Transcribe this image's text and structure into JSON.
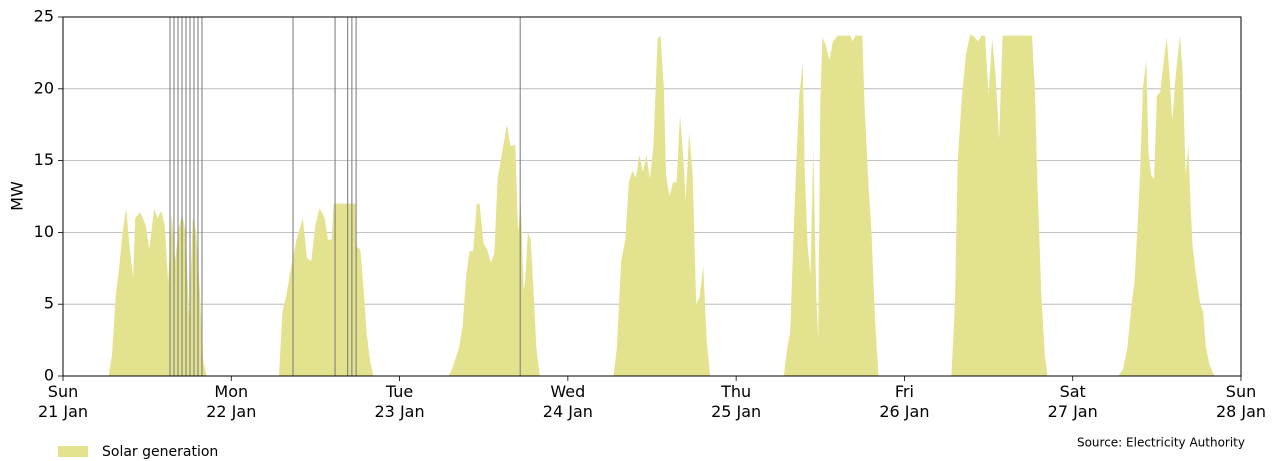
{
  "chart_data": {
    "type": "area",
    "y_label": "MW",
    "source": "Source: Electricity Authority",
    "x": [
      0,
      6.5,
      7,
      7.5,
      8,
      8.5,
      9,
      9.5,
      10,
      10.3,
      11,
      11.8,
      12.3,
      13,
      13.5,
      14,
      14.5,
      15,
      15.5,
      16,
      16.5,
      17,
      17.5,
      18,
      18.5,
      19,
      19.5,
      20,
      20.5,
      30.8,
      31.3,
      31.8,
      32.5,
      33.3,
      34.2,
      34.8,
      35.4,
      36,
      36.6,
      37.3,
      37.8,
      38.3,
      38.6,
      41.7,
      41.9,
      42.4,
      42.8,
      43.3,
      43.8,
      44.3,
      55,
      55.5,
      56.5,
      57,
      57.5,
      58,
      58.5,
      59,
      59.4,
      60,
      60.5,
      61,
      61.5,
      62,
      62.6,
      63.3,
      63.8,
      64.5,
      64.9,
      65.3,
      65.7,
      65.9,
      66.3,
      66.7,
      67.1,
      67.5,
      68,
      78.5,
      79,
      79.6,
      80.2,
      80.7,
      81.2,
      81.7,
      82.2,
      82.7,
      83.2,
      83.7,
      84.2,
      84.8,
      85.2,
      85.7,
      86,
      86.5,
      87,
      87.5,
      88,
      88.5,
      88.8,
      89.3,
      89.8,
      90.3,
      90.8,
      91.3,
      91.8,
      92.3,
      102.8,
      103.3,
      103.7,
      104.2,
      104.6,
      105,
      105.5,
      105.8,
      106.2,
      106.6,
      107,
      107.4,
      107.7,
      108,
      108.3,
      108.8,
      109.3,
      109.8,
      110.5,
      112.3,
      112.6,
      113,
      114,
      114.3,
      114.8,
      115.3,
      115.8,
      116.3,
      126.7,
      127.2,
      127.6,
      128.2,
      128.8,
      129.4,
      130,
      130.5,
      131,
      131.5,
      132,
      132.5,
      133,
      133.5,
      134,
      138.2,
      138.6,
      139,
      139.5,
      140,
      140.4,
      150.5,
      151.2,
      151.8,
      152.4,
      152.8,
      153.2,
      153.6,
      154,
      154.5,
      154.8,
      155.2,
      155.6,
      156,
      156.5,
      157,
      157.4,
      157.8,
      158.2,
      158.7,
      159.3,
      159.7,
      160.1,
      160.5,
      160.8,
      161.1,
      161.6,
      162.2,
      162.6,
      163,
      163.5,
      164.2,
      168
    ],
    "series": [
      {
        "name": "Solar generation",
        "color": "#e3e38f",
        "values": [
          0,
          0,
          1.5,
          5.5,
          7.5,
          10,
          11.7,
          9,
          6.8,
          11,
          11.4,
          10.5,
          8.8,
          11.6,
          11,
          11.5,
          10.5,
          6.5,
          11.3,
          8,
          10.3,
          11.2,
          10,
          4,
          11,
          10,
          6,
          1,
          0,
          0,
          4.5,
          5.5,
          7.5,
          9.5,
          11,
          8.2,
          8,
          10.5,
          11.7,
          11,
          9.5,
          9.5,
          12,
          12,
          9,
          8.8,
          6.5,
          3,
          1,
          0,
          0,
          0.5,
          2,
          3.5,
          7,
          8.7,
          8.7,
          12,
          12,
          9.2,
          8.8,
          7.9,
          8.5,
          13.8,
          15.5,
          17.5,
          16,
          16.1,
          10,
          12,
          6,
          6.5,
          10,
          9.5,
          6,
          2,
          0,
          0,
          2,
          8,
          9.5,
          13.5,
          14.3,
          13.8,
          15.4,
          14.2,
          15.4,
          13.7,
          16,
          23.5,
          23.7,
          20,
          14,
          12.5,
          13.5,
          13.5,
          18.2,
          15,
          12.2,
          17,
          14,
          5,
          5.5,
          7.7,
          2.5,
          0,
          0,
          2,
          3,
          10,
          15,
          19.5,
          21.8,
          14,
          9,
          7,
          16,
          6,
          2.5,
          19,
          23.6,
          23,
          22,
          23.3,
          23.7,
          23.7,
          23.3,
          23.7,
          23.7,
          19,
          14,
          10,
          4,
          0,
          0,
          5,
          15,
          19.5,
          22.5,
          23.8,
          23.6,
          23.3,
          23.7,
          23.7,
          19.5,
          23.5,
          21,
          16.5,
          23.7,
          23.7,
          20,
          13,
          6,
          1.5,
          0,
          0,
          0.5,
          2,
          5,
          6.5,
          10,
          14,
          20,
          22,
          15.5,
          14,
          13.7,
          19.5,
          19.8,
          22,
          23.6,
          21,
          17.8,
          21,
          23.7,
          21,
          14,
          16,
          12,
          9,
          7,
          5,
          4.5,
          2,
          0.8,
          0,
          0
        ]
      }
    ],
    "vlines": [
      15.26,
      15.83,
      16.4,
      16.97,
      17.54,
      18.11,
      18.68,
      19.25,
      19.82,
      32.8,
      38.8,
      40.6,
      41.2,
      41.8,
      65.2
    ],
    "xlim": [
      0,
      168
    ],
    "xticks": [
      {
        "value": 0,
        "label": "Sun\n21 Jan"
      },
      {
        "value": 24,
        "label": "Mon\n22 Jan"
      },
      {
        "value": 48,
        "label": "Tue\n23 Jan"
      },
      {
        "value": 72,
        "label": "Wed\n24 Jan"
      },
      {
        "value": 96,
        "label": "Thu\n25 Jan"
      },
      {
        "value": 120,
        "label": "Fri\n26 Jan"
      },
      {
        "value": 144,
        "label": "Sat\n27 Jan"
      },
      {
        "value": 168,
        "label": "Sun\n28 Jan"
      }
    ],
    "ylim": [
      0,
      25
    ],
    "yticks": [
      0,
      5,
      10,
      15,
      20,
      25
    ],
    "grid": true
  }
}
